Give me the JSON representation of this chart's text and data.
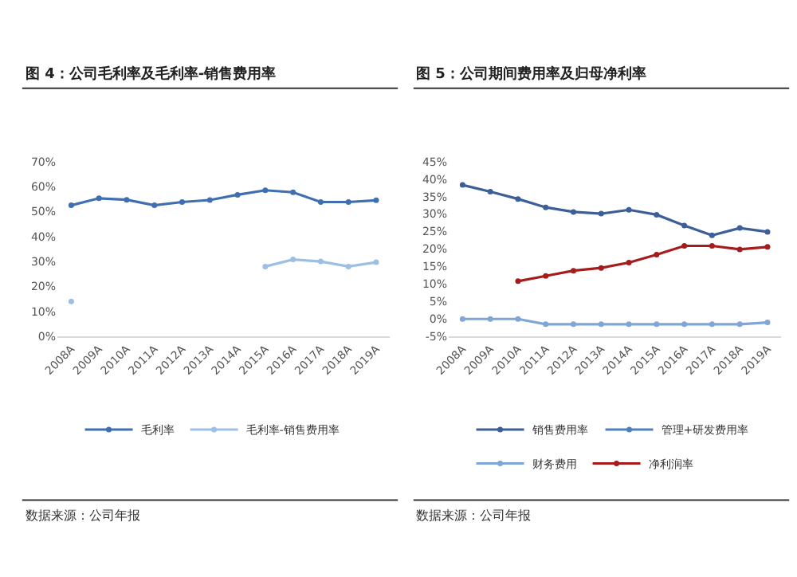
{
  "chart_data": [
    {
      "type": "line",
      "title": "图 4：公司毛利率及毛利率-销售费用率",
      "categories": [
        "2008A",
        "2009A",
        "2010A",
        "2011A",
        "2012A",
        "2013A",
        "2014A",
        "2015A",
        "2016A",
        "2017A",
        "2018A",
        "2019A"
      ],
      "series": [
        {
          "name": "毛利率",
          "color": "#3f6fb0",
          "values": [
            52.5,
            55.3,
            54.7,
            52.5,
            53.8,
            54.6,
            56.7,
            58.5,
            57.7,
            53.8,
            53.8,
            54.5
          ]
        },
        {
          "name": "毛利率-销售费用率",
          "color": "#9dbfe3",
          "values": [
            14,
            null,
            null,
            null,
            null,
            null,
            null,
            28,
            30.8,
            30,
            28,
            29.7
          ]
        }
      ],
      "ylim": [
        0,
        70
      ],
      "yticks": [
        {
          "value": 0,
          "label": "0%"
        },
        {
          "value": 10,
          "label": "10%"
        },
        {
          "value": 20,
          "label": "20%"
        },
        {
          "value": 30,
          "label": "30%"
        },
        {
          "value": 40,
          "label": "40%"
        },
        {
          "value": 50,
          "label": "50%"
        },
        {
          "value": 60,
          "label": "60%"
        },
        {
          "value": 70,
          "label": "70%"
        }
      ],
      "grid": false,
      "legend": "bottom",
      "marker": "circle",
      "line_style": "solid",
      "annotations": [
        "数据来源：公司年报"
      ]
    },
    {
      "type": "line",
      "title": "图 5：公司期间费用率及归母净利率",
      "categories": [
        "2008A",
        "2009A",
        "2010A",
        "2011A",
        "2012A",
        "2013A",
        "2014A",
        "2015A",
        "2016A",
        "2017A",
        "2018A",
        "2019A"
      ],
      "series": [
        {
          "name": "销售费用率",
          "color": "#3d5f98",
          "values": [
            38.3,
            36.4,
            34.3,
            31.9,
            30.6,
            30.1,
            31.2,
            29.8,
            26.7,
            23.9,
            26.0,
            24.9
          ]
        },
        {
          "name": "管理+研发费用率",
          "color": "#4f81bd",
          "values": [
            null,
            null,
            null,
            null,
            null,
            null,
            null,
            null,
            null,
            null,
            null,
            null
          ]
        },
        {
          "name": "财务费用",
          "color": "#7fa6d6",
          "values": [
            0,
            0,
            0,
            -1.5,
            -1.5,
            -1.5,
            -1.5,
            -1.5,
            -1.5,
            -1.5,
            -1.5,
            -1
          ]
        },
        {
          "name": "净利润率",
          "color": "#a61c1c",
          "values": [
            null,
            null,
            10.8,
            12.3,
            13.8,
            14.6,
            16.1,
            18.4,
            20.9,
            20.9,
            19.9,
            20.6
          ]
        }
      ],
      "ylim": [
        -5,
        45
      ],
      "yticks": [
        {
          "value": -5,
          "label": "-5%"
        },
        {
          "value": 0,
          "label": "0%"
        },
        {
          "value": 5,
          "label": "5%"
        },
        {
          "value": 10,
          "label": "10%"
        },
        {
          "value": 15,
          "label": "15%"
        },
        {
          "value": 20,
          "label": "20%"
        },
        {
          "value": 25,
          "label": "25%"
        },
        {
          "value": 30,
          "label": "30%"
        },
        {
          "value": 35,
          "label": "35%"
        },
        {
          "value": 40,
          "label": "40%"
        },
        {
          "value": 45,
          "label": "45%"
        }
      ],
      "grid": false,
      "legend": "bottom",
      "marker": "circle",
      "line_style": "solid",
      "annotations": [
        "数据来源：公司年报"
      ]
    }
  ]
}
